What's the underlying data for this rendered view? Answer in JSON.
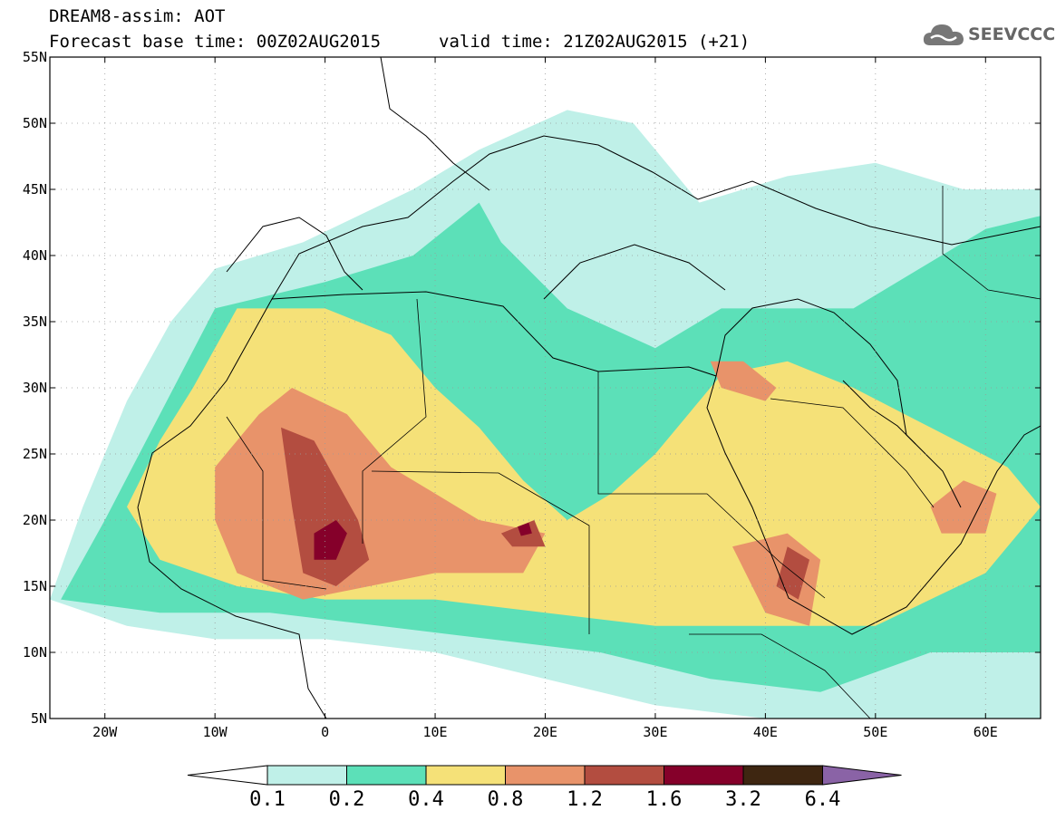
{
  "header": {
    "line1": "DREAM8-assim: AOT",
    "line2": "Forecast base time: 00Z02AUG2015",
    "line3": "valid time: 21Z02AUG2015 (+21)"
  },
  "logo": {
    "text": "SEEVCCC",
    "icon": "cloud-icon"
  },
  "chart_data": {
    "type": "heatmap",
    "variable": "AOT",
    "x_axis": {
      "ticks": [
        -20,
        -10,
        0,
        10,
        20,
        30,
        40,
        50,
        60
      ],
      "tick_labels": [
        "20W",
        "10W",
        "0",
        "10E",
        "20E",
        "30E",
        "40E",
        "50E",
        "60E"
      ],
      "range": [
        -25,
        65
      ]
    },
    "y_axis": {
      "ticks": [
        5,
        10,
        15,
        20,
        25,
        30,
        35,
        40,
        45,
        50,
        55
      ],
      "tick_labels": [
        "5N",
        "10N",
        "15N",
        "20N",
        "25N",
        "30N",
        "35N",
        "40N",
        "45N",
        "50N",
        "55N"
      ],
      "range": [
        5,
        55
      ]
    },
    "grid": true,
    "colorbar": {
      "levels": [
        "0.1",
        "0.2",
        "0.4",
        "0.8",
        "1.2",
        "1.6",
        "3.2",
        "6.4"
      ],
      "colors": [
        "#bff0e8",
        "#5ce0b8",
        "#f5e178",
        "#e8936a",
        "#b34d40",
        "#85002a",
        "#3e2611",
        "#8a63a6"
      ]
    },
    "regions": [
      {
        "class": 1,
        "points": [
          [
            -25,
            14
          ],
          [
            -22,
            21
          ],
          [
            -18,
            29
          ],
          [
            -14,
            35
          ],
          [
            -10,
            39
          ],
          [
            -2,
            41
          ],
          [
            8,
            45
          ],
          [
            14,
            48
          ],
          [
            22,
            51
          ],
          [
            28,
            50
          ],
          [
            34,
            44
          ],
          [
            42,
            46
          ],
          [
            50,
            47
          ],
          [
            58,
            45
          ],
          [
            65,
            45
          ],
          [
            65,
            5
          ],
          [
            50,
            5
          ],
          [
            40,
            5
          ],
          [
            30,
            6
          ],
          [
            20,
            8
          ],
          [
            10,
            10
          ],
          [
            0,
            11
          ],
          [
            -10,
            11
          ],
          [
            -18,
            12
          ]
        ]
      },
      {
        "class": 2,
        "points": [
          [
            -24,
            14
          ],
          [
            -20,
            20
          ],
          [
            -15,
            28
          ],
          [
            -10,
            36
          ],
          [
            0,
            38
          ],
          [
            8,
            40
          ],
          [
            14,
            44
          ],
          [
            16,
            41
          ],
          [
            22,
            36
          ],
          [
            30,
            33
          ],
          [
            36,
            36
          ],
          [
            48,
            36
          ],
          [
            60,
            42
          ],
          [
            65,
            43
          ],
          [
            65,
            10
          ],
          [
            55,
            10
          ],
          [
            45,
            7
          ],
          [
            35,
            8
          ],
          [
            25,
            10
          ],
          [
            15,
            11
          ],
          [
            5,
            12
          ],
          [
            -5,
            13
          ],
          [
            -15,
            13
          ]
        ]
      },
      {
        "class": 3,
        "points": [
          [
            -18,
            21
          ],
          [
            -15,
            26
          ],
          [
            -12,
            30
          ],
          [
            -8,
            36
          ],
          [
            0,
            36
          ],
          [
            6,
            34
          ],
          [
            10,
            30
          ],
          [
            14,
            27
          ],
          [
            18,
            23
          ],
          [
            22,
            20
          ],
          [
            26,
            22
          ],
          [
            30,
            25
          ],
          [
            36,
            31
          ],
          [
            42,
            32
          ],
          [
            48,
            30
          ],
          [
            55,
            27
          ],
          [
            62,
            24
          ],
          [
            65,
            21
          ],
          [
            60,
            16
          ],
          [
            50,
            12
          ],
          [
            40,
            12
          ],
          [
            30,
            12
          ],
          [
            20,
            13
          ],
          [
            10,
            14
          ],
          [
            0,
            14
          ],
          [
            -8,
            15
          ],
          [
            -15,
            17
          ]
        ]
      },
      {
        "class": 4,
        "points": [
          [
            -10,
            24
          ],
          [
            -6,
            28
          ],
          [
            -3,
            30
          ],
          [
            2,
            28
          ],
          [
            6,
            24
          ],
          [
            10,
            22
          ],
          [
            14,
            20
          ],
          [
            20,
            19
          ],
          [
            18,
            16
          ],
          [
            10,
            16
          ],
          [
            4,
            15
          ],
          [
            -2,
            14
          ],
          [
            -8,
            16
          ],
          [
            -10,
            20
          ]
        ]
      },
      {
        "class": 4,
        "points": [
          [
            35,
            32
          ],
          [
            38,
            32
          ],
          [
            41,
            30
          ],
          [
            40,
            29
          ],
          [
            36,
            30
          ]
        ]
      },
      {
        "class": 4,
        "points": [
          [
            37,
            18
          ],
          [
            42,
            19
          ],
          [
            45,
            17
          ],
          [
            44,
            12
          ],
          [
            40,
            13
          ]
        ]
      },
      {
        "class": 4,
        "points": [
          [
            55,
            21
          ],
          [
            58,
            23
          ],
          [
            61,
            22
          ],
          [
            60,
            19
          ],
          [
            56,
            19
          ]
        ]
      },
      {
        "class": 5,
        "points": [
          [
            -4,
            27
          ],
          [
            -1,
            26
          ],
          [
            1,
            23
          ],
          [
            3,
            20
          ],
          [
            4,
            17
          ],
          [
            1,
            15
          ],
          [
            -2,
            16
          ],
          [
            -3,
            21
          ]
        ]
      },
      {
        "class": 5,
        "points": [
          [
            16,
            19
          ],
          [
            19,
            20
          ],
          [
            20,
            18
          ],
          [
            17,
            18
          ]
        ]
      },
      {
        "class": 5,
        "points": [
          [
            42,
            18
          ],
          [
            44,
            17
          ],
          [
            43,
            14
          ],
          [
            41,
            15
          ]
        ]
      },
      {
        "class": 6,
        "points": [
          [
            -1,
            19
          ],
          [
            1,
            20
          ],
          [
            2,
            19
          ],
          [
            1,
            17
          ],
          [
            -1,
            17
          ]
        ]
      },
      {
        "class": 6,
        "points": [
          [
            17.5,
            19.5
          ],
          [
            18.5,
            19.8
          ],
          [
            18.8,
            19
          ],
          [
            17.8,
            18.8
          ]
        ]
      }
    ]
  }
}
